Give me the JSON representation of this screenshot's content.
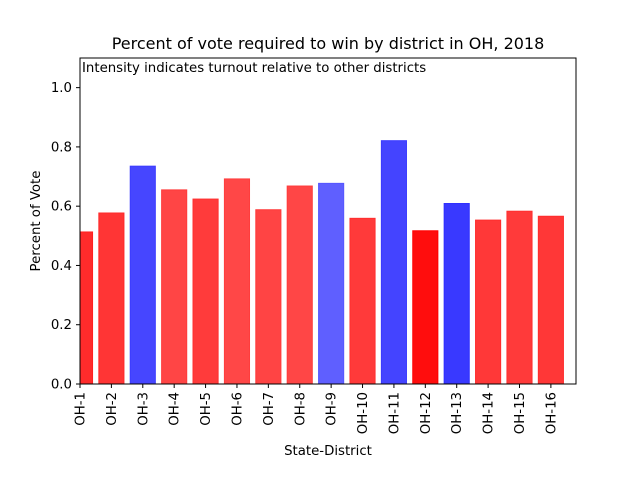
{
  "chart_data": {
    "type": "bar",
    "title": "Percent of vote required to win by district in OH, 2018",
    "annotation": "Intensity indicates turnout relative to other districts",
    "xlabel": "State-District",
    "ylabel": "Percent of Vote",
    "ylim": [
      0,
      1.1
    ],
    "yticks": [
      "0.0",
      "0.2",
      "0.4",
      "0.6",
      "0.8",
      "1.0"
    ],
    "grid": false,
    "categories": [
      "OH-1",
      "OH-2",
      "OH-3",
      "OH-4",
      "OH-5",
      "OH-6",
      "OH-7",
      "OH-8",
      "OH-9",
      "OH-10",
      "OH-11",
      "OH-12",
      "OH-13",
      "OH-14",
      "OH-15",
      "OH-16"
    ],
    "values": [
      0.513,
      0.577,
      0.735,
      0.655,
      0.624,
      0.692,
      0.588,
      0.668,
      0.677,
      0.559,
      0.821,
      0.517,
      0.609,
      0.553,
      0.583,
      0.566
    ],
    "bar_colors": [
      "#ff2020",
      "#ff2a2a",
      "#3c3cff",
      "#ff3b3b",
      "#ff3030",
      "#ff3d3d",
      "#ff3a3a",
      "#ff3c3c",
      "#5656ff",
      "#ff2f2f",
      "#3a3aff",
      "#ff0000",
      "#2e2eff",
      "#ff2d2d",
      "#ff2f2f",
      "#ff2c2c"
    ]
  }
}
